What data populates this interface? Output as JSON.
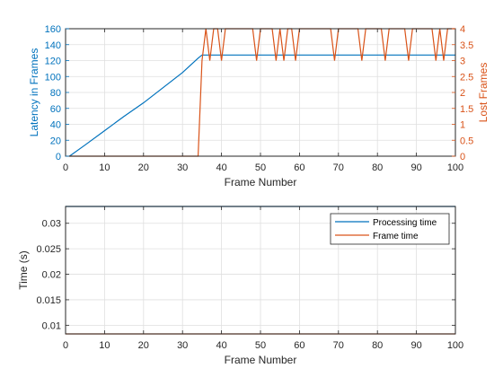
{
  "colors": {
    "series_blue": "#0072BD",
    "series_orange": "#D95319",
    "axis": "#262626",
    "grid": "#dfdfdf"
  },
  "chart_data": [
    {
      "type": "line",
      "title": "",
      "xlabel": "Frame Number",
      "ylabel": "Latency in Frames",
      "ylabel_right": "Lost Frames",
      "xlim": [
        0,
        100
      ],
      "ylim": [
        0,
        160
      ],
      "ylim_right": [
        0,
        4
      ],
      "x_ticks": [
        "0",
        "10",
        "20",
        "30",
        "40",
        "50",
        "60",
        "70",
        "80",
        "90",
        "100"
      ],
      "y_ticks": [
        "0",
        "20",
        "40",
        "60",
        "80",
        "100",
        "120",
        "140",
        "160"
      ],
      "y_ticks_right": [
        "0",
        "0.5",
        "1",
        "1.5",
        "2",
        "2.5",
        "3",
        "3.5",
        "4"
      ],
      "grid": true,
      "series": [
        {
          "axis": "left",
          "color": "#0072BD",
          "x": [
            1,
            5,
            10,
            15,
            20,
            25,
            30,
            34,
            35,
            36,
            40,
            50,
            60,
            70,
            80,
            90,
            100
          ],
          "y": [
            0,
            14,
            32,
            50,
            67,
            86,
            105,
            123,
            127,
            127,
            127,
            127,
            127,
            127,
            127,
            127,
            127
          ]
        },
        {
          "axis": "right",
          "color": "#D95319",
          "x": [
            1,
            34,
            35,
            36,
            37,
            38,
            39,
            40,
            41,
            42,
            48,
            49,
            50,
            51,
            53,
            54,
            55,
            56,
            57,
            58,
            59,
            60,
            61,
            68,
            69,
            70,
            71,
            75,
            76,
            77,
            78,
            81,
            82,
            83,
            84,
            87,
            88,
            89,
            94,
            95,
            96,
            97,
            98,
            99,
            100
          ],
          "y": [
            0,
            0,
            3,
            4,
            3,
            4,
            4,
            3,
            4,
            4,
            4,
            3,
            4,
            4,
            4,
            3,
            4,
            3,
            4,
            4,
            3,
            4,
            4,
            4,
            3,
            4,
            4,
            4,
            3,
            4,
            4,
            4,
            3,
            4,
            4,
            4,
            3,
            4,
            4,
            3,
            4,
            3,
            4,
            4,
            4
          ]
        }
      ]
    },
    {
      "type": "line",
      "title": "",
      "xlabel": "Frame Number",
      "ylabel": "Time (s)",
      "xlim": [
        0,
        100
      ],
      "ylim": [
        0.0083,
        0.0333
      ],
      "x_ticks": [
        "0",
        "10",
        "20",
        "30",
        "40",
        "50",
        "60",
        "70",
        "80",
        "90",
        "100"
      ],
      "y_ticks": [
        "0.01",
        "0.015",
        "0.02",
        "0.025",
        "0.03"
      ],
      "grid": true,
      "legend_position": "top-right",
      "series": [
        {
          "name": "Processing time",
          "color": "#0072BD",
          "x": [
            0,
            100
          ],
          "y": [
            0.0333,
            0.0333
          ]
        },
        {
          "name": "Frame time",
          "color": "#D95319",
          "x": [
            0,
            100
          ],
          "y": [
            0.0083,
            0.0083
          ]
        }
      ]
    }
  ]
}
